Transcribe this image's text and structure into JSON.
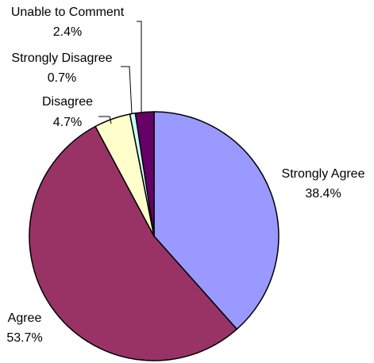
{
  "chart_data": {
    "type": "pie",
    "slices": [
      {
        "label": "Strongly Agree",
        "value": 38.4,
        "value_label": "38.4%",
        "color": "#9999ff"
      },
      {
        "label": "Agree",
        "value": 53.7,
        "value_label": "53.7%",
        "color": "#993366"
      },
      {
        "label": "Disagree",
        "value": 4.7,
        "value_label": "4.7%",
        "color": "#ffffcc"
      },
      {
        "label": "Strongly Disagree",
        "value": 0.7,
        "value_label": "0.7%",
        "color": "#ccffff"
      },
      {
        "label": "Unable to Comment",
        "value": 2.4,
        "value_label": "2.4%",
        "color": "#660066"
      }
    ],
    "start_angle": "12 o'clock",
    "direction": "clockwise",
    "legend": "none"
  }
}
